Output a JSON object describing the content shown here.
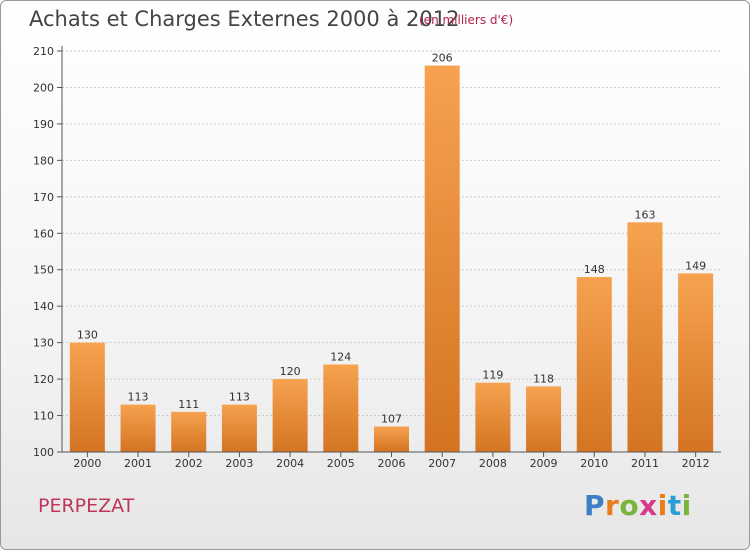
{
  "title": "Achats et Charges Externes 2000 à 2012",
  "subtitle": "(en milliers d'€)",
  "commune": "PERPEZAT",
  "logo": {
    "letters": [
      "P",
      "r",
      "o",
      "x",
      "i",
      "t",
      "i"
    ],
    "colors": [
      "#3d7fc4",
      "#e87d1e",
      "#79b43c",
      "#d83a8a",
      "#e87d1e",
      "#2a9ed6",
      "#79b43c"
    ]
  },
  "chart_data": {
    "type": "bar",
    "categories": [
      "2000",
      "2001",
      "2002",
      "2003",
      "2004",
      "2005",
      "2006",
      "2007",
      "2008",
      "2009",
      "2010",
      "2011",
      "2012"
    ],
    "values": [
      130,
      113,
      111,
      113,
      120,
      124,
      107,
      206,
      119,
      118,
      148,
      163,
      149
    ],
    "ylim": [
      100,
      210
    ],
    "yticks": [
      100,
      110,
      120,
      130,
      140,
      150,
      160,
      170,
      180,
      190,
      200,
      210
    ],
    "grid": true,
    "colors": {
      "bar_light": "#f6a24f",
      "bar_dark": "#d47422",
      "grid": "#cccccc",
      "axis_text": "#333333"
    }
  }
}
